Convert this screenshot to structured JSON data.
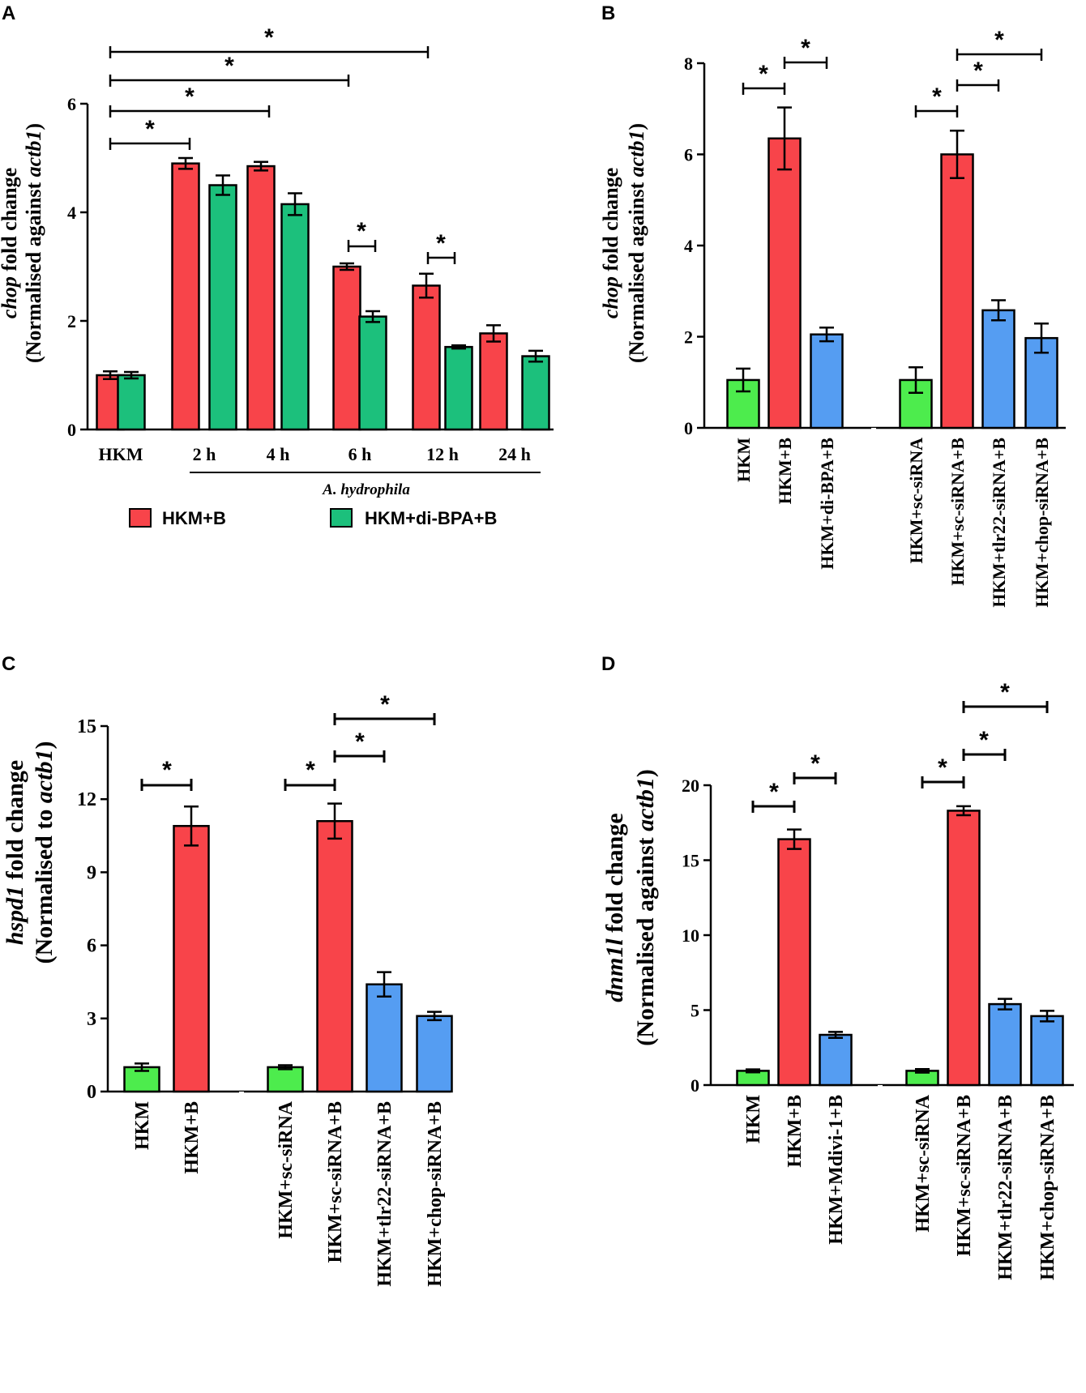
{
  "colors": {
    "red": "#F8444A",
    "teal": "#1CC07C",
    "green": "#4DEC4D",
    "blue": "#559DF2"
  },
  "chart_data": [
    {
      "panel": "A",
      "type": "bar",
      "ylabel_line1_italic": "chop",
      "ylabel_line1_rest": " fold change",
      "ylabel_line2_start": "(Normalised against ",
      "ylabel_line2_italic": "actb1",
      "ylabel_line2_end": ")",
      "ylim": [
        0,
        6
      ],
      "yticks": [
        "0",
        "2",
        "4",
        "6"
      ],
      "categories": [
        "HKM",
        "2 h",
        "4 h",
        "6 h",
        "12 h",
        "24 h"
      ],
      "group_label": "A. hydrophila",
      "series": [
        {
          "name": "HKM+B",
          "values": [
            1.0,
            4.9,
            4.85,
            3.0,
            2.65,
            1.77
          ],
          "errors": [
            0.07,
            0.1,
            0.08,
            0.06,
            0.22,
            0.15
          ]
        },
        {
          "name": "HKM+di-BPA+B",
          "values": [
            1.0,
            4.5,
            4.15,
            2.08,
            1.52,
            1.35
          ],
          "errors": [
            0.06,
            0.18,
            0.2,
            0.1,
            0.03,
            0.1
          ]
        }
      ],
      "significance": [
        "*",
        "*",
        "*",
        "*",
        "*",
        "*"
      ]
    },
    {
      "panel": "B",
      "type": "bar",
      "ylabel_line1_italic": "chop",
      "ylabel_line1_rest": " fold change",
      "ylabel_line2_start": "(Normalised against ",
      "ylabel_line2_italic": "actb1",
      "ylabel_line2_end": ")",
      "ylim": [
        0,
        8
      ],
      "yticks": [
        "0",
        "2",
        "4",
        "6",
        "8"
      ],
      "categories": [
        "HKM",
        "HKM+B",
        "HKM+di-BPA+B",
        "HKM+sc-siRNA",
        "HKM+sc-siRNA+B",
        "HKM+tlr22-siRNA+B",
        "HKM+chop-siRNA+B"
      ],
      "values": [
        1.05,
        6.35,
        2.05,
        1.05,
        6.0,
        2.58,
        1.97
      ],
      "errors": [
        0.25,
        0.68,
        0.15,
        0.28,
        0.52,
        0.22,
        0.32
      ],
      "significance": [
        "*",
        "*",
        "*",
        "*",
        "*"
      ]
    },
    {
      "panel": "C",
      "type": "bar",
      "ylabel_line1_italic": "hspd1",
      "ylabel_line1_rest": " fold change",
      "ylabel_line2_start": "(Normalised to ",
      "ylabel_line2_italic": "actb1",
      "ylabel_line2_end": ")",
      "ylim": [
        0,
        15
      ],
      "yticks": [
        "0",
        "3",
        "6",
        "9",
        "12",
        "15"
      ],
      "categories": [
        "HKM",
        "HKM+B",
        "HKM+sc-siRNA",
        "HKM+sc-siRNA+B",
        "HKM+tlr22-siRNA+B",
        "HKM+chop-siRNA+B"
      ],
      "values": [
        1.0,
        10.9,
        1.0,
        11.1,
        4.4,
        3.1
      ],
      "errors": [
        0.15,
        0.8,
        0.08,
        0.72,
        0.5,
        0.17
      ],
      "significance": [
        "*",
        "*",
        "*",
        "*"
      ]
    },
    {
      "panel": "D",
      "type": "bar",
      "ylabel_line1_italic": "dnm1l",
      "ylabel_line1_rest": " fold change",
      "ylabel_line2_start": "(Normalised against ",
      "ylabel_line2_italic": "actb1",
      "ylabel_line2_end": ")",
      "ylim": [
        0,
        20
      ],
      "yticks": [
        "0",
        "5",
        "10",
        "15",
        "20"
      ],
      "categories": [
        "HKM",
        "HKM+B",
        "HKM+Mdivi-1+B",
        "HKM+sc-siRNA",
        "HKM+sc-siRNA+B",
        "HKM+tlr22-siRNA+B",
        "HKM+chop-siRNA+B"
      ],
      "values": [
        0.95,
        16.4,
        3.35,
        0.95,
        18.3,
        5.4,
        4.6
      ],
      "errors": [
        0.1,
        0.65,
        0.2,
        0.12,
        0.3,
        0.35,
        0.35
      ],
      "significance": [
        "*",
        "*",
        "*",
        "*",
        "*"
      ]
    }
  ]
}
